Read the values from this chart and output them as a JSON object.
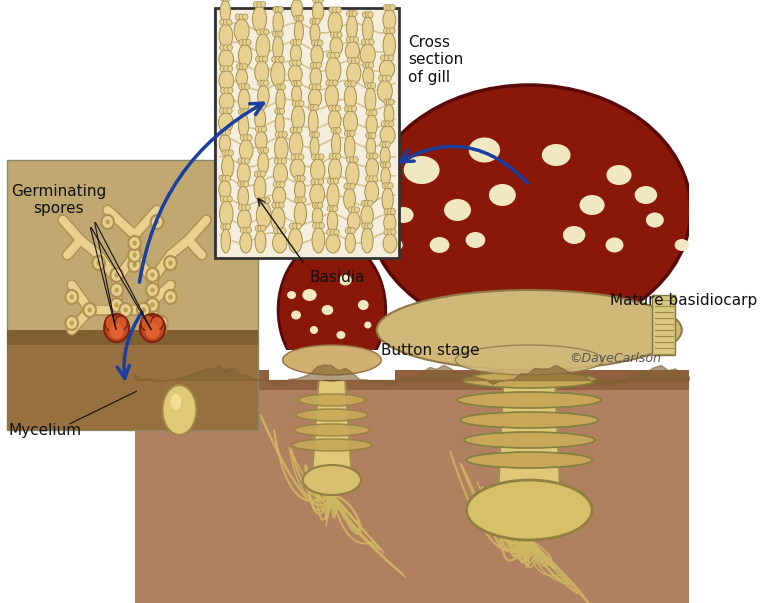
{
  "background_color": "#ffffff",
  "labels": {
    "germinating_spores": "Germinating\nspores",
    "cross_section": "Cross\nsection\nof gill",
    "basidia": "Basidia",
    "button_stage": "Button stage",
    "mature_basidiocarp": "Mature basidiocarp",
    "mycelium": "Mycelium",
    "copyright": "©DaveCarlson"
  },
  "figsize": [
    7.68,
    6.03
  ],
  "dpi": 100,
  "font_size_labels": 11,
  "font_size_copyright": 9,
  "label_color": "#111111",
  "arrow_color": "#1a3fa0",
  "bg_color": "#ffffff",
  "ground_color": "#a07850",
  "ground_dark": "#7a5c38",
  "ground_top_color": "#8a6840",
  "left_panel_bg": "#c8a870",
  "left_panel_above_bg": "#c8b890",
  "left_panel_border": "#888888",
  "inset_bg": "#f5f0e0",
  "inset_border": "#444444",
  "hyphal_color": "#e8d090",
  "hyphal_dark": "#b09050",
  "spore_color": "#c04820",
  "spore_dark": "#802010",
  "cap_color": "#8a2010",
  "cap_dark": "#5a0800",
  "stipe_color": "#e0c878",
  "stipe_dark": "#a09050",
  "spot_color": "#f0e8c0",
  "root_color": "#d0b860",
  "gill_color": "#d4b870",
  "basidia_color": "#e8d090"
}
